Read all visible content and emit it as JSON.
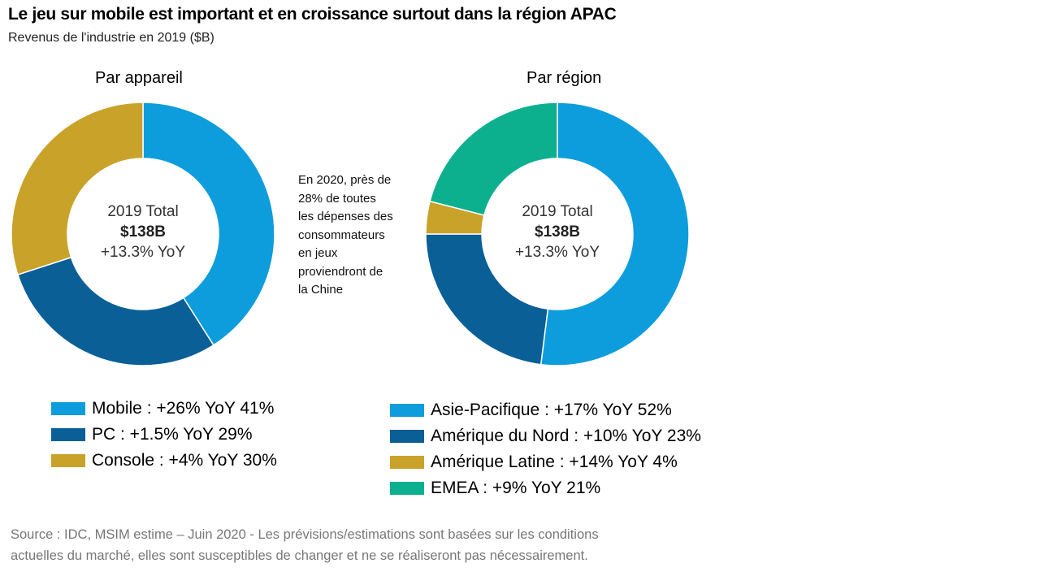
{
  "title": "Le jeu sur mobile est important et en croissance surtout dans la région APAC",
  "subtitle": "Revenus de l'industrie en 2019 ($B)",
  "note": [
    "En 2020, près de",
    "28% de toutes",
    "les dépenses des",
    "consommateurs",
    "en jeux",
    "proviendront de",
    "la Chine"
  ],
  "source": [
    "Source : IDC, MSIM estime – Juin 2020 - Les prévisions/estimations sont basées sur les conditions",
    "actuelles du marché, elles sont susceptibles de changer et ne se réaliseront pas nécessairement."
  ],
  "chart_data": [
    {
      "type": "pie",
      "donut": true,
      "title": "Par appareil",
      "center": {
        "line1": "2019 Total",
        "line2": "$138B",
        "line3": "+13.3% YoY"
      },
      "categories": [
        "Mobile",
        "PC",
        "Console"
      ],
      "values": [
        41,
        29,
        30
      ],
      "colors": [
        "#0d9ddd",
        "#0a5f97",
        "#c9a22a"
      ],
      "legend": [
        "Mobile : +26% YoY 41%",
        "PC : +1.5% YoY 29%",
        "Console : +4% YoY 30%"
      ],
      "legend_position": "bottom"
    },
    {
      "type": "pie",
      "donut": true,
      "title": "Par région",
      "center": {
        "line1": "2019 Total",
        "line2": "$138B",
        "line3": "+13.3% YoY"
      },
      "categories": [
        "Asie-Pacifique",
        "Amérique du Nord",
        "Amérique Latine",
        "EMEA"
      ],
      "values": [
        52,
        23,
        4,
        21
      ],
      "colors": [
        "#0d9ddd",
        "#0a5f97",
        "#c9a22a",
        "#0cb08f"
      ],
      "legend": [
        "Asie-Pacifique : +17% YoY 52%",
        "Amérique du Nord : +10% YoY 23%",
        "Amérique Latine : +14% YoY 4%",
        "EMEA : +9% YoY 21%"
      ],
      "legend_position": "bottom"
    }
  ]
}
